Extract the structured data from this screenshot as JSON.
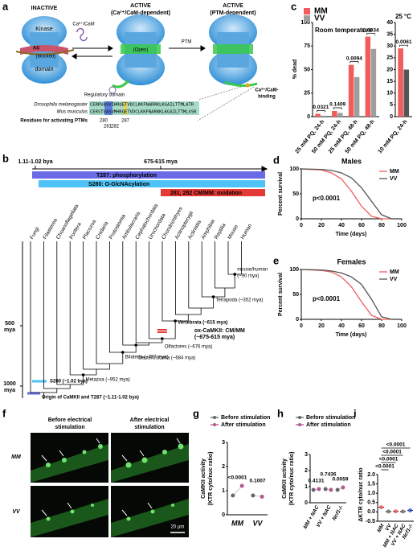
{
  "panel_a": {
    "label": "a",
    "states": [
      {
        "title": "INACTIVE"
      },
      {
        "title": "ACTIVE",
        "subtitle": "(Ca²⁺/CaM-dependent)"
      },
      {
        "title": "ACTIVE",
        "subtitle": "(PTM-dependent)"
      }
    ],
    "kinase_labels": [
      "Kinase",
      "AS",
      "(blocked)",
      "domain"
    ],
    "open": "(Open)",
    "cam": "Ca²⁺/CaM",
    "ptm": "PTM",
    "regulatory": "Regulatory domain",
    "binding": [
      "Ca²⁺/CaM-",
      "binding"
    ],
    "species": [
      {
        "name": "Drosophila melanogaster",
        "sequence": "CERRVASVIHRQETVDCLKKFNARRKLKGAILTTMLATR"
      },
      {
        "name": "Mus musculus",
        "sequence": "CERSTVASVMHRQETVDCLKKFNARRKLKGAILTTMLVSR"
      }
    ],
    "residues_title": "Residues for activating PTMs",
    "residues": [
      280,
      281,
      282,
      287
    ]
  },
  "panel_b": {
    "label": "b",
    "timeline": [
      "1.11-1.02 bya",
      "675-615 mya"
    ],
    "bars": [
      "T287: phosphorylation",
      "S280: O-GlcNAcylation",
      "281, 282 CM/MM: oxidation"
    ],
    "taxa": [
      "Fungi",
      "Filasterea",
      "Choanoflagellata",
      "Porifera",
      "Placozoa",
      "Cnidaria",
      "Protostomia",
      "Ambulacraria",
      "Cephalochordata",
      "Urochordata",
      "Chondrichthyes",
      "Actinopterygii",
      "Actinistia",
      "Amphibia",
      "Reptilia",
      "Mouse",
      "Human"
    ],
    "nodes": [
      "mouse/human",
      "(~90 mya)",
      "Tetrapoda (~352 mya)",
      "Vertebrata (~615 mya)",
      "Olfactores (~676 mya)",
      "Deuterostomia (~684 mya)",
      "Bilateria (~797 mya)",
      "Metazoa (~952 mya)"
    ],
    "ox": [
      "ox-CaMKII: CM/MM",
      "(~675-615 mya)"
    ],
    "s280": "S280 (~1.02 bya)",
    "origin": "Origin of CaMKII and T287 (~1.11-1.02 bya)",
    "axis_labels": [
      [
        "500",
        "mya"
      ],
      [
        "1000",
        "mya"
      ]
    ]
  },
  "panel_f": {
    "label": "f",
    "columns": [
      [
        "Before electrical",
        "stimulation"
      ],
      [
        "After electrical",
        "stimulation"
      ]
    ],
    "rows": [
      "MM",
      "VV"
    ],
    "scale": "20 µm"
  },
  "chart_data": [
    {
      "type": "bar",
      "panel": "c",
      "title": "Room temperature",
      "y_label": "% dead",
      "categories": [
        "25 mM PQ, 24-h",
        "50 mM PQ, 24-h",
        "25 mM PQ, 48-h",
        "50 mM PQ, 48-h"
      ],
      "series": [
        {
          "name": "MM",
          "color": "#f25c5c",
          "values": [
            3,
            6,
            55,
            85
          ]
        },
        {
          "name": "VV",
          "color": "#9e9e9e",
          "values": [
            1,
            4,
            42,
            72
          ]
        }
      ],
      "ylim": [
        0,
        100
      ],
      "yticks": [
        0,
        25,
        50,
        75,
        100
      ],
      "annotations": [
        "0.0321",
        "0.1409",
        "0.0094",
        "0.0034"
      ]
    },
    {
      "type": "bar",
      "title": "25 °C",
      "categories": [
        "10 mM PQ, 24-h"
      ],
      "series": [
        {
          "color": "#f25c5c",
          "values": [
            29
          ]
        },
        {
          "color": "#555555",
          "values": [
            20
          ]
        }
      ],
      "ylim": [
        0,
        40
      ],
      "yticks": [
        0,
        5,
        10,
        15,
        20,
        25,
        30,
        35,
        40
      ],
      "annotations": [
        "0.0061"
      ]
    },
    {
      "type": "line",
      "panel": "d",
      "title": "Males",
      "x_label": "Time (days)",
      "y_label": "Percent survival",
      "x": [
        0,
        20,
        30,
        40,
        50,
        60,
        70,
        80,
        90
      ],
      "series": [
        {
          "name": "MM",
          "color": "#f25c5c",
          "values": [
            100,
            98,
            92,
            80,
            55,
            25,
            5,
            0,
            0
          ]
        },
        {
          "name": "VV",
          "color": "#555555",
          "values": [
            100,
            99,
            97,
            92,
            82,
            62,
            35,
            8,
            0
          ]
        }
      ],
      "xlim": [
        0,
        100
      ],
      "xticks": [
        0,
        20,
        40,
        60,
        80,
        100
      ],
      "ylim": [
        0,
        100
      ],
      "yticks": [
        0,
        50,
        100
      ],
      "annotation": "p<0.0001"
    },
    {
      "type": "line",
      "panel": "e",
      "title": "Females",
      "x_label": "Time (days)",
      "y_label": "Percent survival",
      "x": [
        0,
        20,
        30,
        40,
        50,
        60,
        70,
        80,
        90
      ],
      "series": [
        {
          "name": "MM",
          "color": "#f25c5c",
          "values": [
            100,
            98,
            95,
            85,
            65,
            35,
            8,
            0,
            0
          ]
        },
        {
          "name": "VV",
          "color": "#555555",
          "values": [
            100,
            99,
            97,
            93,
            85,
            70,
            40,
            5,
            0
          ]
        }
      ],
      "xlim": [
        0,
        100
      ],
      "xticks": [
        0,
        20,
        40,
        60,
        80,
        100
      ],
      "ylim": [
        0,
        100
      ],
      "yticks": [
        0,
        50,
        100
      ],
      "annotation": "p<0.0001"
    },
    {
      "type": "dot",
      "panel": "g",
      "y_label": [
        "CaMKII activity",
        "(KTR cyto/nuc ratio)"
      ],
      "categories": [
        "MM",
        "VV"
      ],
      "series": [
        {
          "name": "Before stimulation",
          "color": "#666666",
          "values": [
            0.8,
            0.8
          ]
        },
        {
          "name": "After stimulation",
          "color": "#b3588f",
          "values": [
            1.2,
            0.75
          ]
        }
      ],
      "ylim": [
        0,
        3
      ],
      "yticks": [
        0,
        1,
        2,
        3
      ],
      "annotations": [
        "<0.0001",
        "0.1007"
      ]
    },
    {
      "type": "dot",
      "panel": "h",
      "y_label": [
        "CaMKII activity",
        "(KTR cyto/nuc ratio)"
      ],
      "categories": [
        "MM + NAC",
        "VV + NAC",
        "Ncf1-/-"
      ],
      "series": [
        {
          "name": "Before stimulation",
          "color": "#666666",
          "values": [
            0.8,
            0.85,
            0.8
          ]
        },
        {
          "name": "After stimulation",
          "color": "#b3588f",
          "values": [
            0.85,
            0.8,
            0.95
          ]
        }
      ],
      "ylim": [
        0,
        3
      ],
      "yticks": [
        0,
        1,
        2,
        3
      ],
      "annotations": [
        "0.4131",
        "0.7436",
        "0.0059"
      ]
    },
    {
      "type": "dot",
      "panel": "i",
      "y_label": "ΔKTR cyto/nuc ratio",
      "categories": [
        "MM",
        "VV",
        "MM + NAC",
        "VV + NAC",
        "Ncf1-/-"
      ],
      "values": [
        0.25,
        0.02,
        0.03,
        0.02,
        0.08
      ],
      "colors": [
        "#f25c5c",
        "#777777",
        "#f25c5c",
        "#777777",
        "#3b5bdb"
      ],
      "ylim": [
        -0.5,
        2.0
      ],
      "yticks": [
        -0.5,
        {
          "value": 0,
          "label": "0.0"
        },
        0.5,
        {
          "value": 1,
          "label": "1.0"
        },
        1.5,
        {
          "value": 2,
          "label": "2.0"
        }
      ],
      "annotations": [
        "<0.0001",
        "<0.0001",
        "<0.0001",
        "<0.0001"
      ]
    }
  ]
}
